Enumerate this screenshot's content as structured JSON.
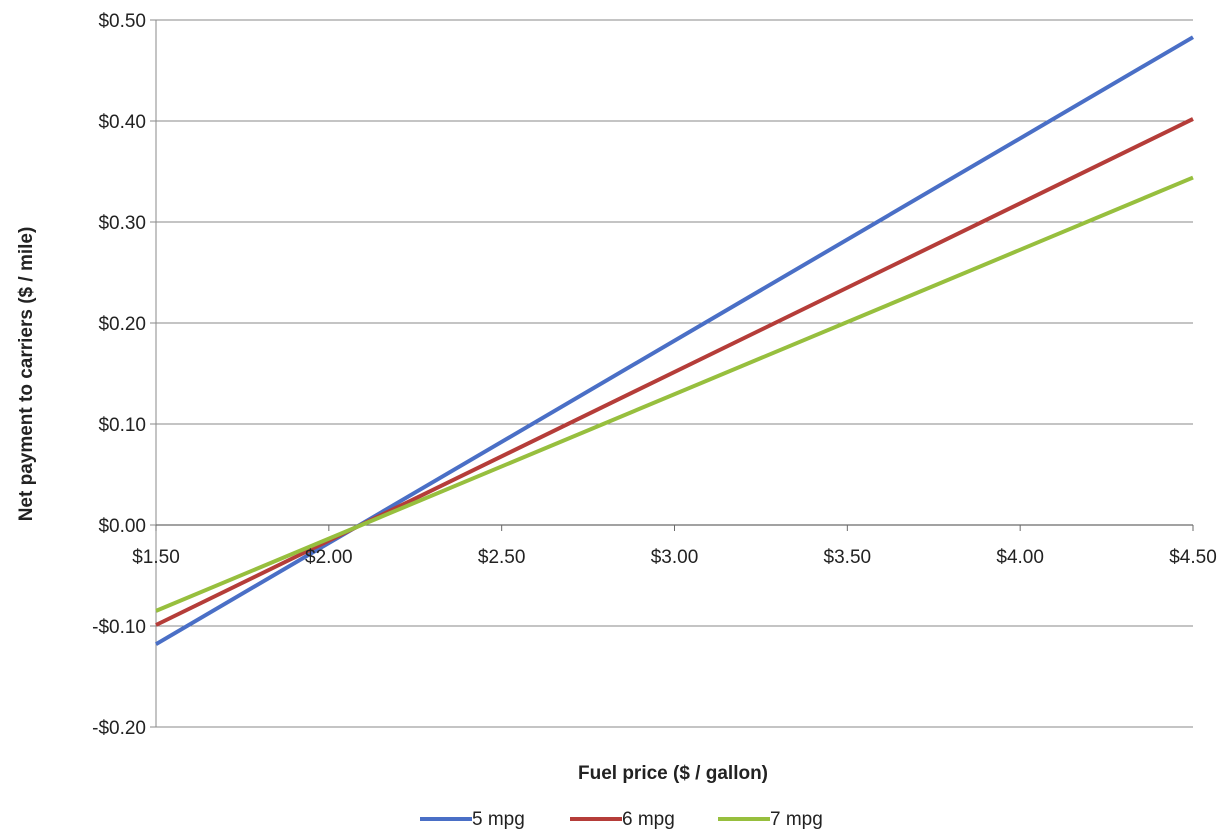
{
  "chart_data": {
    "type": "line",
    "title": "",
    "xlabel": "Fuel price ($ / gallon)",
    "ylabel": "Net payment to carriers ($ / mile)",
    "xlim": [
      1.5,
      4.5
    ],
    "ylim": [
      -0.2,
      0.5
    ],
    "x_ticks": [
      1.5,
      2.0,
      2.5,
      3.0,
      3.5,
      4.0,
      4.5
    ],
    "x_tick_labels": [
      "$1.50",
      "$2.00",
      "$2.50",
      "$3.00",
      "$3.50",
      "$4.00",
      "$4.50"
    ],
    "y_ticks": [
      -0.2,
      -0.1,
      0.0,
      0.1,
      0.2,
      0.3,
      0.4,
      0.5
    ],
    "y_tick_labels": [
      "-$0.20",
      "-$0.10",
      "$0.00",
      "$0.10",
      "$0.20",
      "$0.30",
      "$0.40",
      "$0.50"
    ],
    "grid": "horizontal",
    "legend_position": "bottom",
    "x": [
      1.5,
      4.5
    ],
    "series": [
      {
        "name": "5 mpg",
        "color": "#4a6fc6",
        "values": [
          -0.118,
          0.483
        ]
      },
      {
        "name": "6 mpg",
        "color": "#b53d39",
        "values": [
          -0.099,
          0.402
        ]
      },
      {
        "name": "7 mpg",
        "color": "#97bf3e",
        "values": [
          -0.085,
          0.344
        ]
      }
    ]
  }
}
